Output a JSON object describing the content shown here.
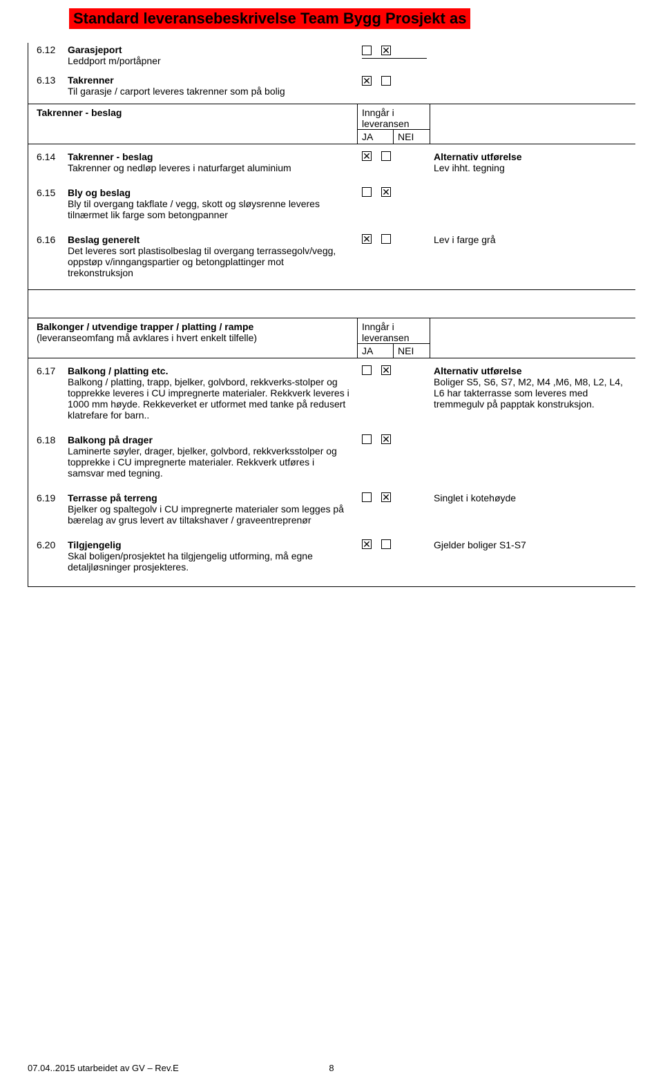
{
  "header": {
    "title": "Standard leveransebeskrivelse Team Bygg Prosjekt as"
  },
  "labels": {
    "inngar": "Inngår i leveransen",
    "ja": "JA",
    "nei": "NEI",
    "alternativ": "Alternativ utførelse"
  },
  "top_rows": [
    {
      "num": "6.12",
      "title": "Garasjeport",
      "body": "Leddport m/portåpner",
      "ja": false,
      "nei": true,
      "alt": ""
    },
    {
      "num": "6.13",
      "title": "Takrenner",
      "body": "Til garasje / carport leveres takrenner som på bolig",
      "ja": true,
      "nei": false,
      "alt": ""
    }
  ],
  "section1": {
    "heading": "Takrenner - beslag",
    "rows": [
      {
        "num": "6.14",
        "title": "Takrenner - beslag",
        "body": "Takrenner og nedløp leveres i naturfarget aluminium",
        "ja": true,
        "nei": false,
        "alt_title": "Alternativ utførelse",
        "alt": "Lev ihht. tegning"
      },
      {
        "num": "6.15",
        "title": "Bly og beslag",
        "body": "Bly til overgang takflate / vegg, skott og sløysrenne leveres tilnærmet lik farge som betongpanner",
        "ja": false,
        "nei": true,
        "alt": ""
      },
      {
        "num": "6.16",
        "title": "Beslag generelt",
        "body": "Det leveres sort plastisolbeslag til overgang terrassegolv/vegg, oppstøp v/inngangspartier og betongplattinger mot trekonstruksjon",
        "ja": true,
        "nei": false,
        "alt": "Lev i farge grå"
      }
    ]
  },
  "section2": {
    "heading": "Balkonger / utvendige trapper / platting / rampe",
    "sub": "(leveranseomfang må avklares i hvert enkelt tilfelle)",
    "rows": [
      {
        "num": "6.17",
        "title": "Balkong / platting etc.",
        "body": "Balkong / platting, trapp, bjelker, golvbord, rekkverks-stolper og topprekke leveres i CU impregnerte materialer. Rekkverk leveres i 1000 mm høyde. Rekkeverket er utformet med tanke på redusert klatrefare for barn..",
        "ja": false,
        "nei": true,
        "alt_title": "Alternativ utførelse",
        "alt": "Boliger S5, S6, S7, M2, M4 ,M6, M8, L2, L4, L6 har takterrasse som leveres med tremmegulv på papptak konstruksjon."
      },
      {
        "num": "6.18",
        "title": "Balkong på drager",
        "body": "Laminerte søyler, drager, bjelker, golvbord, rekkverksstolper og topprekke i CU impregnerte materialer. Rekkverk utføres i samsvar med tegning.",
        "ja": false,
        "nei": true,
        "alt": ""
      },
      {
        "num": "6.19",
        "title": "Terrasse på terreng",
        "body": "Bjelker og spaltegolv i CU impregnerte materialer som legges på bærelag av grus levert av tiltakshaver / graveentreprenør",
        "ja": false,
        "nei": true,
        "alt": "Singlet i kotehøyde"
      },
      {
        "num": "6.20",
        "title": "Tilgjengelig",
        "body": "Skal boligen/prosjektet ha tilgjengelig utforming, må egne detaljløsninger prosjekteres.",
        "ja": true,
        "nei": false,
        "alt": "Gjelder boliger S1-S7"
      }
    ]
  },
  "footer": {
    "left": "07.04..2015 utarbeidet av GV – Rev.E",
    "page": "8"
  },
  "symbols": {
    "checked": "☒",
    "unchecked": ""
  }
}
